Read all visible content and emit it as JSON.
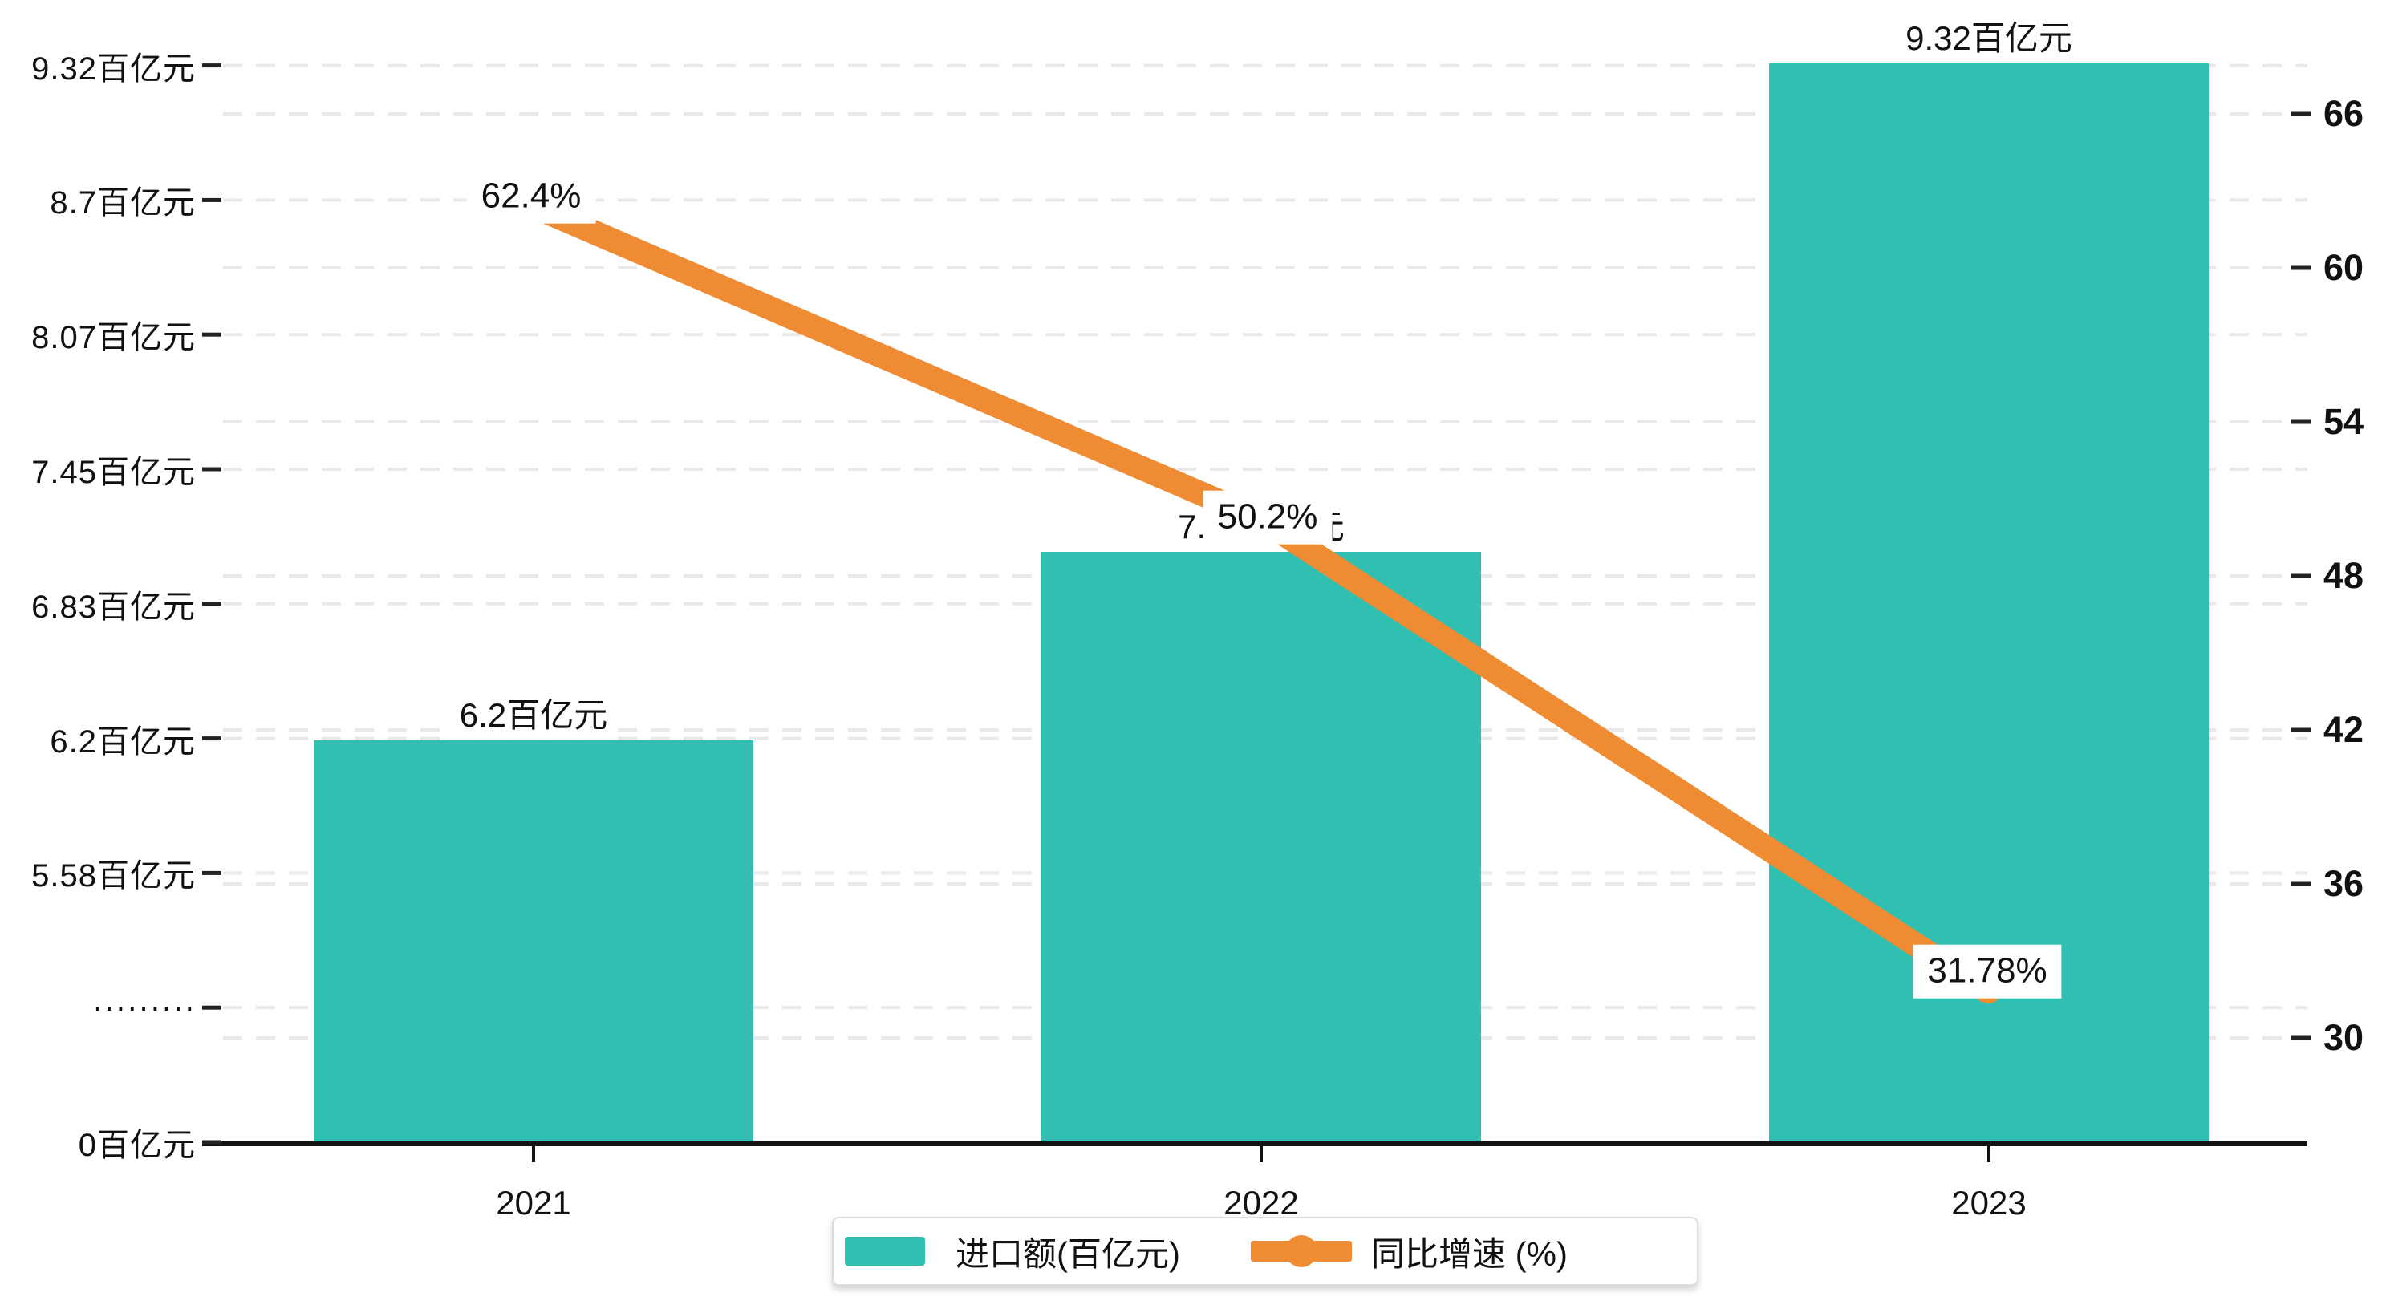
{
  "legend": {
    "bar_label": "进口额(百亿元)",
    "line_label": "同比增速 (%)"
  },
  "colors": {
    "bar": "#31BFB2",
    "line": "#EE8B33",
    "grid": "#E9E9E9",
    "axis": "#111111",
    "tick": "#222222",
    "label_bg": "#FFFFFF"
  },
  "left_axis": {
    "tick_labels": [
      "0百亿元",
      "·········",
      "5.58百亿元",
      "6.2百亿元",
      "6.83百亿元",
      "7.45百亿元",
      "8.07百亿元",
      "8.7百亿元",
      "9.32百亿元"
    ]
  },
  "right_axis": {
    "tick_values": [
      30,
      36,
      42,
      48,
      54,
      60,
      66
    ]
  },
  "chart_data": {
    "type": "bar+line",
    "categories": [
      "2021",
      "2022",
      "2023"
    ],
    "series": [
      {
        "name": "进口额(百亿元)",
        "type": "bar",
        "axis": "left",
        "values": [
          6.2,
          7.07,
          9.32
        ],
        "labels": [
          "6.2百亿元",
          "7.07百亿元",
          "9.32百亿元"
        ]
      },
      {
        "name": "同比增速 (%)",
        "type": "line",
        "axis": "right",
        "values": [
          62.4,
          50.2,
          31.78
        ],
        "labels": [
          "62.4%",
          "50.2%",
          "31.78%"
        ]
      }
    ],
    "left_axis_unit": "百亿元",
    "left_axis_tick_labels": [
      "0百亿元",
      "·········",
      "5.58百亿元",
      "6.2百亿元",
      "6.83百亿元",
      "7.45百亿元",
      "8.07百亿元",
      "8.7百亿元",
      "9.32百亿元"
    ],
    "right_axis_ticks": [
      30,
      36,
      42,
      48,
      54,
      60,
      66
    ],
    "right_ylim": [
      30,
      66
    ],
    "grid": "dashed-horizontal",
    "legend_position": "bottom-center"
  }
}
